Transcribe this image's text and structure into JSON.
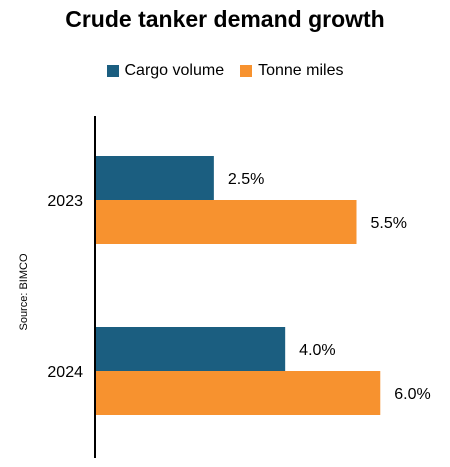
{
  "source": "Source: BIMCO",
  "chart_data": {
    "type": "bar",
    "orientation": "horizontal",
    "title": "Crude tanker demand growth",
    "categories": [
      "2023",
      "2024"
    ],
    "series": [
      {
        "name": "Cargo volume",
        "values": [
          2.5,
          4.0
        ],
        "labels": [
          "2.5%",
          "4.0%"
        ],
        "color": "#1b5e80"
      },
      {
        "name": "Tonne miles",
        "values": [
          5.5,
          6.0
        ],
        "labels": [
          "5.5%",
          "6.0%"
        ],
        "color": "#f7922f"
      }
    ],
    "xlim": [
      0,
      7
    ],
    "legend": "top-center",
    "grid": false
  }
}
